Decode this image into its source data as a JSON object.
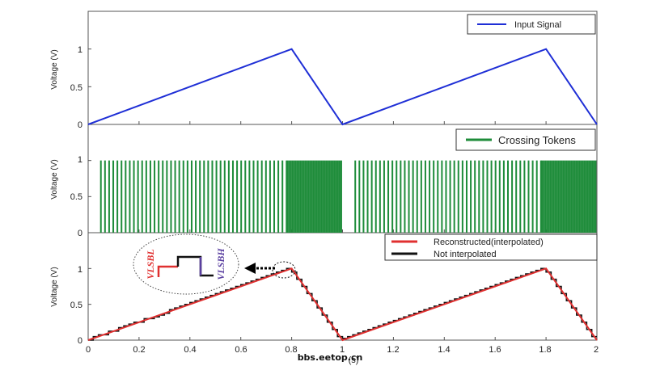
{
  "chart_data": [
    {
      "type": "line",
      "panel": "top",
      "ylabel": "Voltage (V)",
      "ylim": [
        0,
        1.5
      ],
      "yticks": [
        "0",
        "0.5",
        "1"
      ],
      "xlim": [
        0,
        2
      ],
      "legend_position": "top-right",
      "series": [
        {
          "name": "Input Signal",
          "color": "#1f2fd6",
          "x": [
            0,
            0.8,
            1.0,
            1.8,
            2.0
          ],
          "y": [
            0,
            1,
            0,
            1,
            0
          ]
        }
      ]
    },
    {
      "type": "bar",
      "panel": "middle",
      "ylabel": "Voltage (V)",
      "ylim": [
        0,
        1.5
      ],
      "yticks": [
        "0",
        "0.5",
        "1"
      ],
      "xlim": [
        0,
        2
      ],
      "legend_position": "top-right",
      "series": [
        {
          "name": "Crossing Tokens",
          "color": "#1e8c3a",
          "pulse_value": 1,
          "pulse_segments": [
            {
              "x_start": 0.05,
              "x_end": 0.78,
              "count": 46
            },
            {
              "x_start": 0.785,
              "x_end": 0.995,
              "count": 34
            },
            {
              "x_start": 1.05,
              "x_end": 1.78,
              "count": 46
            },
            {
              "x_start": 1.785,
              "x_end": 1.995,
              "count": 34
            }
          ]
        }
      ]
    },
    {
      "type": "line",
      "panel": "bottom",
      "ylabel": "Voltage (V)",
      "xlabel": "(s)",
      "ylim": [
        0,
        1.5
      ],
      "yticks": [
        "0",
        "0.5",
        "1"
      ],
      "xlim": [
        0,
        2
      ],
      "xticks": [
        "0",
        "0.2",
        "0.4",
        "0.6",
        "0.8",
        "1",
        "1.2",
        "1.4",
        "1.6",
        "1.8",
        "2"
      ],
      "legend_position": "top-right",
      "series": [
        {
          "name": "Reconstructed(interpolated)",
          "color": "#e03030",
          "x": [
            0,
            0.8,
            1.0,
            1.8,
            2.0
          ],
          "y": [
            0,
            1,
            0,
            1,
            0
          ]
        },
        {
          "name": "Not interpolated",
          "color": "#111111",
          "style": "staircase",
          "steps_per_ramp": 40
        }
      ],
      "annotations": {
        "inset_labels": [
          "VLSBL",
          "VLSBH"
        ],
        "inset_label_colors": [
          "#e03030",
          "#5a3fa0"
        ]
      }
    }
  ],
  "watermark": "bbs.eetop.cn"
}
